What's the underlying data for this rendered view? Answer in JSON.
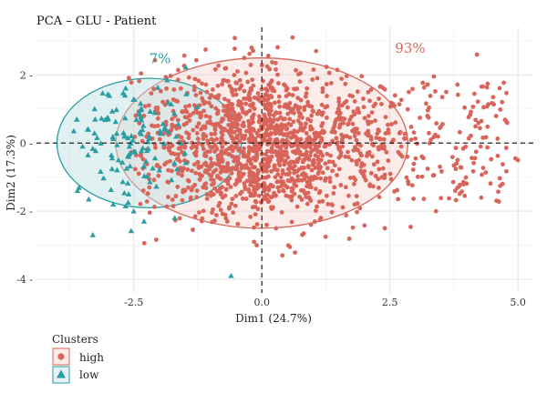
{
  "chart_data": {
    "type": "scatter",
    "title": "PCA – GLU - Patient",
    "xlabel": "Dim1 (24.7%)",
    "ylabel": "Dim2 (17.3%)",
    "xlim": [
      -4.4,
      5.3
    ],
    "ylim": [
      -4.4,
      3.4
    ],
    "x_ticks": [
      -2.5,
      0.0,
      2.5,
      5.0
    ],
    "x_tick_labels": [
      "-2.5",
      "0.0",
      "2.5",
      "5.0"
    ],
    "y_ticks": [
      -4,
      -2,
      0,
      2
    ],
    "y_tick_labels": [
      "-4",
      "-2",
      "0",
      "2"
    ],
    "grid": true,
    "reference_lines": {
      "x": 0,
      "y": 0,
      "style": "dashed"
    },
    "legend": {
      "title": "Clusters",
      "placement": "bottom-left",
      "entries": [
        {
          "label": "high",
          "marker": "circle",
          "color": "#D9655A"
        },
        {
          "label": "low",
          "marker": "triangle",
          "color": "#2A9EA3"
        }
      ]
    },
    "series": [
      {
        "name": "high",
        "color": "#D9655A",
        "marker": "circle",
        "ellipse": {
          "cx": 0.0,
          "cy": 0.0,
          "rx": 2.85,
          "ry": 2.5,
          "label": "93%"
        },
        "sample_points": [
          [
            -2.3,
            0.8
          ],
          [
            -1.5,
            -1.4
          ],
          [
            -0.7,
            2.2
          ],
          [
            0.5,
            1.6
          ],
          [
            1.2,
            0.3
          ],
          [
            2.0,
            -1.0
          ],
          [
            2.6,
            1.4
          ],
          [
            3.3,
            0.1
          ],
          [
            3.8,
            -0.6
          ],
          [
            4.2,
            2.6
          ],
          [
            4.95,
            -0.45
          ],
          [
            5.0,
            -0.5
          ],
          [
            4.7,
            -1.2
          ],
          [
            0.6,
            3.1
          ],
          [
            0.4,
            -3.3
          ],
          [
            -0.1,
            -3.0
          ],
          [
            -0.2,
            2.8
          ],
          [
            3.6,
            1.5
          ],
          [
            3.4,
            -2.0
          ],
          [
            2.4,
            -2.5
          ]
        ],
        "point_count_estimate": 2500
      },
      {
        "name": "low",
        "color": "#2A9EA3",
        "marker": "triangle",
        "ellipse": {
          "cx": -2.2,
          "cy": 0.0,
          "rx": 1.8,
          "ry": 1.9,
          "label": "7%"
        },
        "sample_points": [
          [
            -3.5,
            -0.1
          ],
          [
            -3.6,
            -1.4
          ],
          [
            -3.3,
            -2.7
          ],
          [
            -3.0,
            0.7
          ],
          [
            -2.8,
            -0.5
          ],
          [
            -2.6,
            -1.5
          ],
          [
            -2.4,
            0.9
          ],
          [
            -2.2,
            0.2
          ],
          [
            -2.0,
            -0.8
          ],
          [
            -1.9,
            0.4
          ],
          [
            -1.7,
            -2.2
          ],
          [
            -1.5,
            -0.3
          ],
          [
            -2.9,
            -1.8
          ],
          [
            -3.4,
            0.4
          ],
          [
            -2.3,
            -2.3
          ],
          [
            -0.6,
            -3.9
          ]
        ],
        "point_count_estimate": 150
      }
    ]
  }
}
